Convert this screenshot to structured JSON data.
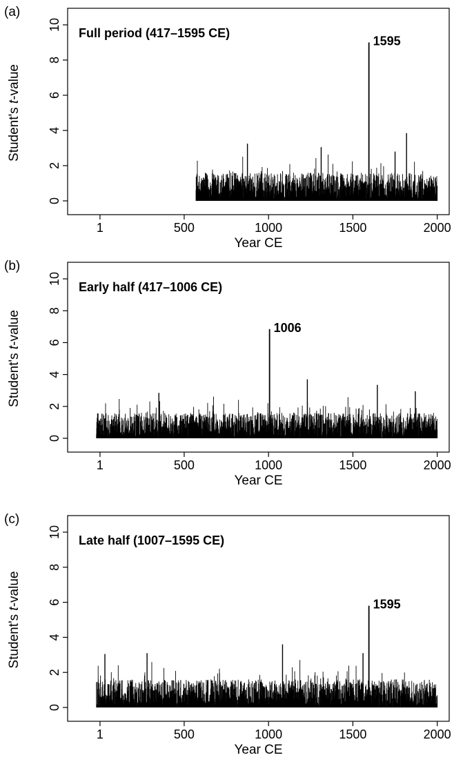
{
  "colors": {
    "background": "#ffffff",
    "ink": "#000000"
  },
  "chart_data": [
    {
      "type": "bar",
      "panel_letter": "(a)",
      "title": "Full period (417–1595 CE)",
      "xlabel": "Year CE",
      "ylabel_prefix": "Student's ",
      "ylabel_italic": "t",
      "ylabel_suffix": "-value",
      "xlim": [
        -150,
        2030
      ],
      "ylim": [
        0,
        10
      ],
      "xticks": [
        1,
        500,
        1000,
        1500,
        2000
      ],
      "yticks": [
        0,
        2,
        4,
        6,
        8,
        10
      ],
      "data_start_year": 569,
      "data_end_year": 2000,
      "grid": false,
      "legend": "none",
      "peak": {
        "x": 1595,
        "y": 9.0,
        "label": "1595"
      },
      "notable_values": [
        {
          "x": 875,
          "y": 3.25
        },
        {
          "x": 1312,
          "y": 3.05
        },
        {
          "x": 1818,
          "y": 3.85
        },
        {
          "x": 1750,
          "y": 2.8
        }
      ]
    },
    {
      "type": "bar",
      "panel_letter": "(b)",
      "title": "Early half (417–1006 CE)",
      "xlabel": "Year CE",
      "ylabel_prefix": "Student's ",
      "ylabel_italic": "t",
      "ylabel_suffix": "-value",
      "xlim": [
        -150,
        2030
      ],
      "ylim": [
        0,
        10
      ],
      "xticks": [
        1,
        500,
        1000,
        1500,
        2000
      ],
      "yticks": [
        0,
        2,
        4,
        6,
        8,
        10
      ],
      "data_start_year": -20,
      "data_end_year": 2000,
      "grid": false,
      "legend": "none",
      "peak": {
        "x": 1006,
        "y": 6.85,
        "label": "1006"
      },
      "notable_values": [
        {
          "x": 350,
          "y": 2.85
        },
        {
          "x": 1230,
          "y": 3.7
        },
        {
          "x": 1645,
          "y": 3.35
        },
        {
          "x": 1870,
          "y": 2.95
        }
      ]
    },
    {
      "type": "bar",
      "panel_letter": "(c)",
      "title": "Late half (1007–1595 CE)",
      "xlabel": "Year CE",
      "ylabel_prefix": "Student's ",
      "ylabel_italic": "t",
      "ylabel_suffix": "-value",
      "xlim": [
        -150,
        2030
      ],
      "ylim": [
        0,
        10
      ],
      "xticks": [
        1,
        500,
        1000,
        1500,
        2000
      ],
      "yticks": [
        0,
        2,
        4,
        6,
        8,
        10
      ],
      "data_start_year": -20,
      "data_end_year": 2000,
      "grid": false,
      "legend": "none",
      "peak": {
        "x": 1595,
        "y": 5.8,
        "label": "1595"
      },
      "notable_values": [
        {
          "x": 30,
          "y": 3.05
        },
        {
          "x": 280,
          "y": 3.1
        },
        {
          "x": 1083,
          "y": 3.6
        },
        {
          "x": 1560,
          "y": 3.1
        }
      ]
    }
  ]
}
